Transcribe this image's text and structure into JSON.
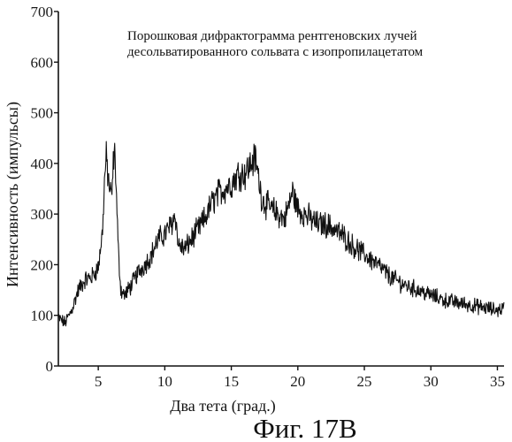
{
  "chart_data": {
    "type": "line",
    "title": "",
    "annotation": [
      "Порошковая дифрактограмма рентгеновских лучей",
      "десольватированного сольвата с изопропилацетатом"
    ],
    "xlabel": "Два тета (град.)",
    "ylabel": "Интенсивность (импульсы)",
    "caption": "Фиг. 17B",
    "xlim": [
      2,
      35.5
    ],
    "ylim": [
      0,
      700
    ],
    "xticks": [
      5,
      10,
      15,
      20,
      25,
      30,
      35
    ],
    "yticks": [
      0,
      100,
      200,
      300,
      400,
      500,
      600,
      700
    ],
    "grid": false,
    "line_color": "#111111",
    "series": [
      {
        "x": [
          2.0,
          2.5,
          3.0,
          3.5,
          4.0,
          4.5,
          5.0,
          5.3,
          5.5,
          5.6,
          5.8,
          6.0,
          6.1,
          6.2,
          6.3,
          6.5,
          6.7,
          7.0,
          7.5,
          8.0,
          8.5,
          9.0,
          9.5,
          10.0,
          10.5,
          10.8,
          11.0,
          11.5,
          12.0,
          12.5,
          13.0,
          13.5,
          14.0,
          14.5,
          15.0,
          15.5,
          16.0,
          16.5,
          16.8,
          17.0,
          17.3,
          17.6,
          18.0,
          18.5,
          19.0,
          19.3,
          19.6,
          20.0,
          20.5,
          21.0,
          21.5,
          22.0,
          22.5,
          23.0,
          23.5,
          24.0,
          25.0,
          26.0,
          27.0,
          28.0,
          29.0,
          30.0,
          31.0,
          32.0,
          33.0,
          34.0,
          35.0,
          35.5
        ],
        "values": [
          95,
          85,
          110,
          150,
          170,
          175,
          195,
          260,
          380,
          410,
          360,
          330,
          380,
          430,
          390,
          230,
          150,
          140,
          160,
          185,
          200,
          220,
          250,
          260,
          280,
          300,
          240,
          230,
          250,
          270,
          290,
          320,
          340,
          350,
          360,
          380,
          380,
          400,
          410,
          380,
          330,
          320,
          310,
          300,
          290,
          315,
          345,
          310,
          300,
          290,
          280,
          280,
          275,
          265,
          255,
          240,
          220,
          200,
          175,
          160,
          150,
          140,
          130,
          125,
          120,
          115,
          110,
          115
        ]
      }
    ]
  }
}
